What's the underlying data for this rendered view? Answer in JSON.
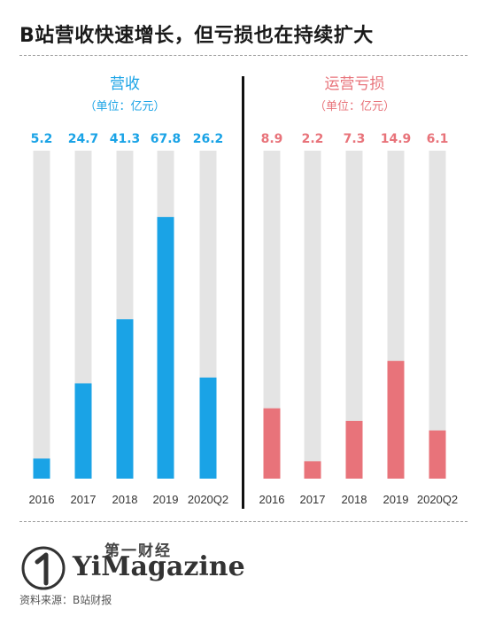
{
  "title": "B站营收快速增长，但亏损也在持续扩大",
  "brand": {
    "cn": "第一财经",
    "en": "YiMagazine"
  },
  "source": "资料来源：B站财报",
  "chart_data": [
    {
      "type": "bar",
      "title": "营收",
      "subtitle": "（单位：亿元）",
      "categories": [
        "2016",
        "2017",
        "2018",
        "2019",
        "2020Q2"
      ],
      "values": [
        5.2,
        24.7,
        41.3,
        67.8,
        26.2
      ],
      "value_labels": [
        "5.2",
        "24.7",
        "41.3",
        "67.8",
        "26.2"
      ],
      "ylim": [
        0,
        85
      ],
      "color": "#1aa3e6",
      "track_color": "#e4e4e4",
      "grid": false
    },
    {
      "type": "bar",
      "title": "运营亏损",
      "subtitle": "（单位：亿元）",
      "categories": [
        "2016",
        "2017",
        "2018",
        "2019",
        "2020Q2"
      ],
      "values": [
        8.9,
        2.2,
        7.3,
        14.9,
        6.1
      ],
      "value_labels": [
        "8.9",
        "2.2",
        "7.3",
        "14.9",
        "6.1"
      ],
      "ylim": [
        0,
        41.5
      ],
      "color": "#e8737a",
      "track_color": "#e4e4e4",
      "grid": false
    }
  ]
}
